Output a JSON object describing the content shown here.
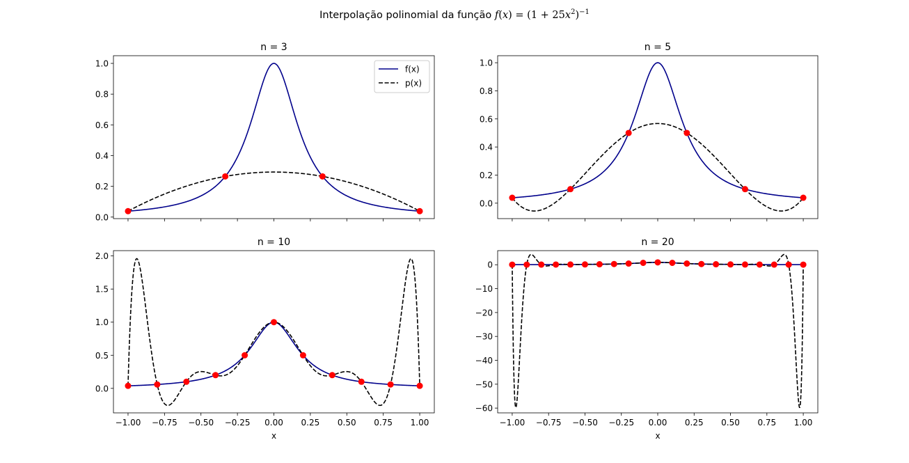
{
  "figure": {
    "suptitle_text": "Interpolação polinomial da função",
    "suptitle_math_f": "f",
    "suptitle_math_x": "x",
    "suptitle_math_body": "(1 + 25",
    "suptitle_math_exp": "2",
    "suptitle_math_exp2": "−1"
  },
  "colors": {
    "f_line": "#00008b",
    "p_line": "#000000",
    "nodes": "#ff0000"
  },
  "chart_data": [
    {
      "type": "line",
      "title": "n = 3",
      "n": 3,
      "xlim": [
        -1.1,
        1.1
      ],
      "ylim": [
        -0.01,
        1.05
      ],
      "yticks": [
        0.0,
        0.2,
        0.4,
        0.6,
        0.8,
        1.0
      ],
      "ytick_labels": [
        "0.0",
        "0.2",
        "0.4",
        "0.6",
        "0.8",
        "1.0"
      ],
      "xticks": [
        -1.0,
        -0.75,
        -0.5,
        -0.25,
        0.0,
        0.25,
        0.5,
        0.75,
        1.0
      ],
      "xtick_labels": [],
      "xlabel": "",
      "legend": {
        "position": "top-right",
        "entries": [
          "f(x)",
          "p(x)"
        ]
      },
      "series": [
        {
          "name": "f(x)",
          "style": "solid",
          "function": "1/(1+25x^2)"
        },
        {
          "name": "p(x)",
          "style": "dashed",
          "function": "interpolating polynomial through nodes"
        },
        {
          "name": "nodes",
          "style": "markers",
          "x": [
            -1.0,
            -0.3333,
            0.3333,
            1.0
          ],
          "y": [
            0.0385,
            0.2647,
            0.2647,
            0.0385
          ]
        }
      ]
    },
    {
      "type": "line",
      "title": "n = 5",
      "n": 5,
      "xlim": [
        -1.1,
        1.1
      ],
      "ylim": [
        -0.11,
        1.05
      ],
      "yticks": [
        0.0,
        0.2,
        0.4,
        0.6,
        0.8,
        1.0
      ],
      "ytick_labels": [
        "0.0",
        "0.2",
        "0.4",
        "0.6",
        "0.8",
        "1.0"
      ],
      "xticks": [
        -1.0,
        -0.75,
        -0.5,
        -0.25,
        0.0,
        0.25,
        0.5,
        0.75,
        1.0
      ],
      "xtick_labels": [],
      "xlabel": "",
      "series": [
        {
          "name": "f(x)",
          "style": "solid",
          "function": "1/(1+25x^2)"
        },
        {
          "name": "p(x)",
          "style": "dashed",
          "function": "interpolating polynomial through nodes"
        },
        {
          "name": "nodes",
          "style": "markers",
          "x": [
            -1.0,
            -0.6,
            -0.2,
            0.2,
            0.6,
            1.0
          ],
          "y": [
            0.0385,
            0.1,
            0.5,
            0.5,
            0.1,
            0.0385
          ]
        }
      ]
    },
    {
      "type": "line",
      "title": "n = 10",
      "n": 10,
      "xlim": [
        -1.1,
        1.1
      ],
      "ylim": [
        -0.37,
        2.08
      ],
      "yticks": [
        0.0,
        0.5,
        1.0,
        1.5,
        2.0
      ],
      "ytick_labels": [
        "0.0",
        "0.5",
        "1.0",
        "1.5",
        "2.0"
      ],
      "xticks": [
        -1.0,
        -0.75,
        -0.5,
        -0.25,
        0.0,
        0.25,
        0.5,
        0.75,
        1.0
      ],
      "xtick_labels": [
        "−1.00",
        "−0.75",
        "−0.50",
        "−0.25",
        "0.00",
        "0.25",
        "0.50",
        "0.75",
        "1.00"
      ],
      "xlabel": "x",
      "series": [
        {
          "name": "f(x)",
          "style": "solid",
          "function": "1/(1+25x^2)"
        },
        {
          "name": "p(x)",
          "style": "dashed",
          "function": "interpolating polynomial through nodes"
        },
        {
          "name": "nodes",
          "style": "markers",
          "x": [
            -1.0,
            -0.8,
            -0.6,
            -0.4,
            -0.2,
            0.0,
            0.2,
            0.4,
            0.6,
            0.8,
            1.0
          ],
          "y": [
            0.0385,
            0.0588,
            0.1,
            0.2,
            0.5,
            1.0,
            0.5,
            0.2,
            0.1,
            0.0588,
            0.0385
          ]
        }
      ]
    },
    {
      "type": "line",
      "title": "n = 20",
      "n": 20,
      "xlim": [
        -1.1,
        1.1
      ],
      "ylim": [
        -62.0,
        5.9
      ],
      "yticks": [
        -60,
        -50,
        -40,
        -30,
        -20,
        -10,
        0
      ],
      "ytick_labels": [
        "−60",
        "−50",
        "−40",
        "−30",
        "−20",
        "−10",
        "0"
      ],
      "xticks": [
        -1.0,
        -0.75,
        -0.5,
        -0.25,
        0.0,
        0.25,
        0.5,
        0.75,
        1.0
      ],
      "xtick_labels": [
        "−1.00",
        "−0.75",
        "−0.50",
        "−0.25",
        "0.00",
        "0.25",
        "0.50",
        "0.75",
        "1.00"
      ],
      "xlabel": "x",
      "series": [
        {
          "name": "f(x)",
          "style": "solid",
          "function": "1/(1+25x^2)"
        },
        {
          "name": "p(x)",
          "style": "dashed",
          "function": "interpolating polynomial through nodes"
        },
        {
          "name": "nodes",
          "style": "markers",
          "x": [
            -1.0,
            -0.9,
            -0.8,
            -0.7,
            -0.6,
            -0.5,
            -0.4,
            -0.3,
            -0.2,
            -0.1,
            0.0,
            0.1,
            0.2,
            0.3,
            0.4,
            0.5,
            0.6,
            0.7,
            0.8,
            0.9,
            1.0
          ],
          "y": [
            0.0385,
            0.0471,
            0.0588,
            0.0755,
            0.1,
            0.1379,
            0.2,
            0.3077,
            0.5,
            0.8,
            1.0,
            0.8,
            0.5,
            0.3077,
            0.2,
            0.1379,
            0.1,
            0.0755,
            0.0588,
            0.0471,
            0.0385
          ]
        }
      ]
    }
  ]
}
